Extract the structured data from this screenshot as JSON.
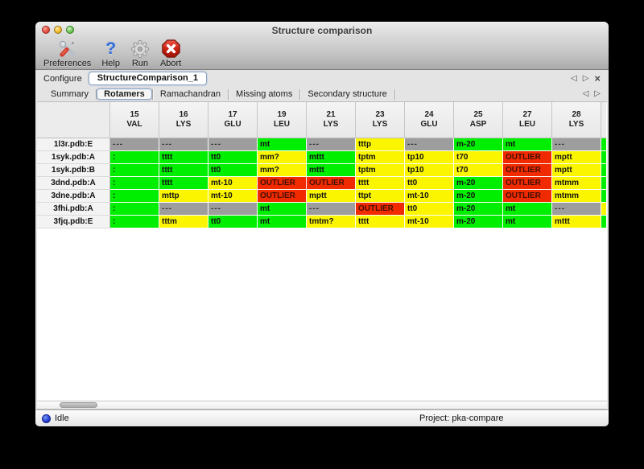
{
  "window": {
    "title": "Structure comparison"
  },
  "toolbar": {
    "items": [
      {
        "name": "preferences",
        "label": "Preferences"
      },
      {
        "name": "help",
        "label": "Help"
      },
      {
        "name": "run",
        "label": "Run"
      },
      {
        "name": "abort",
        "label": "Abort"
      }
    ]
  },
  "configure": {
    "label": "Configure",
    "value": "StructureComparison_1"
  },
  "nav": {
    "prev": "◁",
    "next": "▷",
    "close": "×"
  },
  "tabs": {
    "items": [
      "Summary",
      "Rotamers",
      "Ramachandran",
      "Missing atoms",
      "Secondary structure"
    ],
    "active": "Rotamers"
  },
  "table": {
    "columns": [
      {
        "num": "15",
        "res": "VAL"
      },
      {
        "num": "16",
        "res": "LYS"
      },
      {
        "num": "17",
        "res": "GLU"
      },
      {
        "num": "19",
        "res": "LEU"
      },
      {
        "num": "21",
        "res": "LYS"
      },
      {
        "num": "23",
        "res": "LYS"
      },
      {
        "num": "24",
        "res": "GLU"
      },
      {
        "num": "25",
        "res": "ASP"
      },
      {
        "num": "27",
        "res": "LEU"
      },
      {
        "num": "28",
        "res": "LYS"
      }
    ],
    "rows": [
      {
        "label": "1l3r.pdb:E",
        "edge": "green",
        "cells": [
          {
            "t": "---",
            "s": "gray"
          },
          {
            "t": "---",
            "s": "gray"
          },
          {
            "t": "---",
            "s": "gray"
          },
          {
            "t": "mt",
            "s": "green"
          },
          {
            "t": "---",
            "s": "gray"
          },
          {
            "t": "tttp",
            "s": "yellow"
          },
          {
            "t": "---",
            "s": "gray"
          },
          {
            "t": "m-20",
            "s": "green"
          },
          {
            "t": "mt",
            "s": "green"
          },
          {
            "t": "---",
            "s": "gray"
          }
        ]
      },
      {
        "label": "1syk.pdb:A",
        "edge": "green",
        "cells": [
          {
            "t": ":",
            "s": "green"
          },
          {
            "t": "tttt",
            "s": "green"
          },
          {
            "t": "tt0",
            "s": "green"
          },
          {
            "t": "mm?",
            "s": "yellow"
          },
          {
            "t": "mttt",
            "s": "green"
          },
          {
            "t": "tptm",
            "s": "yellow"
          },
          {
            "t": "tp10",
            "s": "yellow"
          },
          {
            "t": "t70",
            "s": "yellow"
          },
          {
            "t": "OUTLIER",
            "s": "red"
          },
          {
            "t": "mptt",
            "s": "yellow"
          }
        ]
      },
      {
        "label": "1syk.pdb:B",
        "edge": "green",
        "cells": [
          {
            "t": ":",
            "s": "green"
          },
          {
            "t": "tttt",
            "s": "green"
          },
          {
            "t": "tt0",
            "s": "green"
          },
          {
            "t": "mm?",
            "s": "yellow"
          },
          {
            "t": "mttt",
            "s": "green"
          },
          {
            "t": "tptm",
            "s": "yellow"
          },
          {
            "t": "tp10",
            "s": "yellow"
          },
          {
            "t": "t70",
            "s": "yellow"
          },
          {
            "t": "OUTLIER",
            "s": "red"
          },
          {
            "t": "mptt",
            "s": "yellow"
          }
        ]
      },
      {
        "label": "3dnd.pdb:A",
        "edge": "green",
        "cells": [
          {
            "t": ":",
            "s": "green"
          },
          {
            "t": "tttt",
            "s": "green"
          },
          {
            "t": "mt-10",
            "s": "yellow"
          },
          {
            "t": "OUTLIER",
            "s": "red"
          },
          {
            "t": "OUTLIER",
            "s": "red"
          },
          {
            "t": "tttt",
            "s": "yellow"
          },
          {
            "t": "tt0",
            "s": "yellow"
          },
          {
            "t": "m-20",
            "s": "green"
          },
          {
            "t": "OUTLIER",
            "s": "red"
          },
          {
            "t": "mtmm",
            "s": "yellow"
          }
        ]
      },
      {
        "label": "3dne.pdb:A",
        "edge": "green",
        "cells": [
          {
            "t": ":",
            "s": "green"
          },
          {
            "t": "mttp",
            "s": "yellow"
          },
          {
            "t": "mt-10",
            "s": "yellow"
          },
          {
            "t": "OUTLIER",
            "s": "red"
          },
          {
            "t": "mptt",
            "s": "yellow"
          },
          {
            "t": "ttpt",
            "s": "yellow"
          },
          {
            "t": "mt-10",
            "s": "yellow"
          },
          {
            "t": "m-20",
            "s": "green"
          },
          {
            "t": "OUTLIER",
            "s": "red"
          },
          {
            "t": "mtmm",
            "s": "yellow"
          }
        ]
      },
      {
        "label": "3fhi.pdb:A",
        "edge": "yellow",
        "cells": [
          {
            "t": ":",
            "s": "green"
          },
          {
            "t": "---",
            "s": "gray"
          },
          {
            "t": "---",
            "s": "gray"
          },
          {
            "t": "mt",
            "s": "green"
          },
          {
            "t": "---",
            "s": "gray"
          },
          {
            "t": "OUTLIER",
            "s": "red"
          },
          {
            "t": "tt0",
            "s": "yellow"
          },
          {
            "t": "m-20",
            "s": "green"
          },
          {
            "t": "mt",
            "s": "green"
          },
          {
            "t": "---",
            "s": "gray"
          }
        ]
      },
      {
        "label": "3fjq.pdb:E",
        "edge": "green",
        "cells": [
          {
            "t": ":",
            "s": "green"
          },
          {
            "t": "tttm",
            "s": "yellow"
          },
          {
            "t": "tt0",
            "s": "green"
          },
          {
            "t": "mt",
            "s": "green"
          },
          {
            "t": "tmtm?",
            "s": "yellow"
          },
          {
            "t": "tttt",
            "s": "yellow"
          },
          {
            "t": "mt-10",
            "s": "yellow"
          },
          {
            "t": "m-20",
            "s": "green"
          },
          {
            "t": "mt",
            "s": "green"
          },
          {
            "t": "mttt",
            "s": "yellow"
          }
        ]
      }
    ]
  },
  "colors": {
    "green": "#00ee00",
    "yellow": "#fbf600",
    "red": "#f12a00",
    "gray": "#9d9d9d"
  },
  "statusbar": {
    "state": "Idle",
    "project": "Project: pka-compare"
  }
}
